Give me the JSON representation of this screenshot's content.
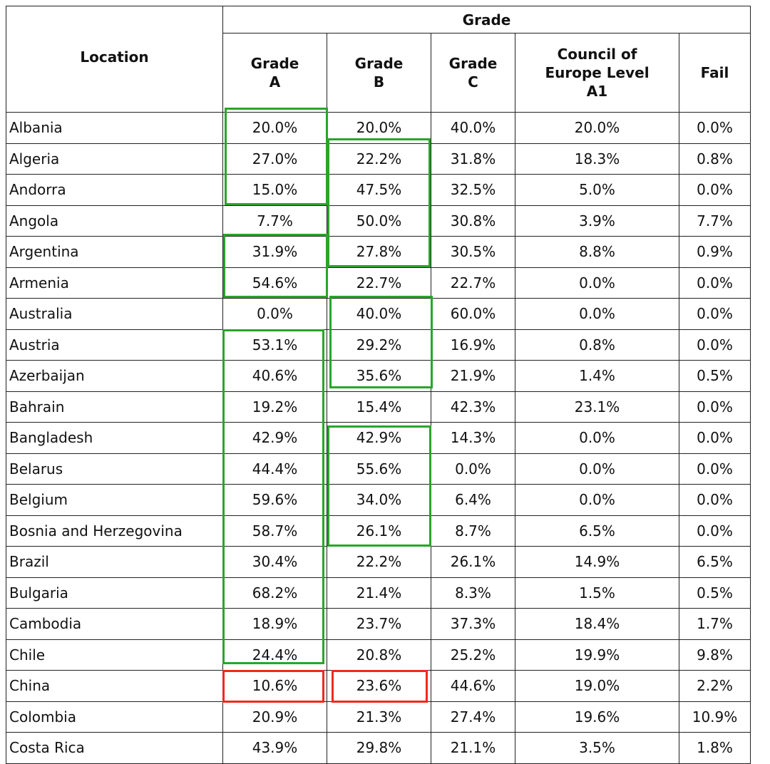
{
  "table": {
    "headers": {
      "location": "Location",
      "group": "Grade",
      "grade_a": [
        "Grade",
        "A"
      ],
      "grade_b": [
        "Grade",
        "B"
      ],
      "grade_c": [
        "Grade",
        "C"
      ],
      "council": [
        "Council of",
        "Europe Level",
        "A1"
      ],
      "fail": "Fail"
    },
    "rows": [
      {
        "location": "Albania",
        "values": [
          "20.0%",
          "20.0%",
          "40.0%",
          "20.0%",
          "0.0%"
        ]
      },
      {
        "location": "Algeria",
        "values": [
          "27.0%",
          "22.2%",
          "31.8%",
          "18.3%",
          "0.8%"
        ]
      },
      {
        "location": "Andorra",
        "values": [
          "15.0%",
          "47.5%",
          "32.5%",
          "5.0%",
          "0.0%"
        ]
      },
      {
        "location": "Angola",
        "values": [
          "7.7%",
          "50.0%",
          "30.8%",
          "3.9%",
          "7.7%"
        ]
      },
      {
        "location": "Argentina",
        "values": [
          "31.9%",
          "27.8%",
          "30.5%",
          "8.8%",
          "0.9%"
        ]
      },
      {
        "location": "Armenia",
        "values": [
          "54.6%",
          "22.7%",
          "22.7%",
          "0.0%",
          "0.0%"
        ]
      },
      {
        "location": "Australia",
        "values": [
          "0.0%",
          "40.0%",
          "60.0%",
          "0.0%",
          "0.0%"
        ]
      },
      {
        "location": "Austria",
        "values": [
          "53.1%",
          "29.2%",
          "16.9%",
          "0.8%",
          "0.0%"
        ]
      },
      {
        "location": "Azerbaijan",
        "values": [
          "40.6%",
          "35.6%",
          "21.9%",
          "1.4%",
          "0.5%"
        ]
      },
      {
        "location": "Bahrain",
        "values": [
          "19.2%",
          "15.4%",
          "42.3%",
          "23.1%",
          "0.0%"
        ]
      },
      {
        "location": "Bangladesh",
        "values": [
          "42.9%",
          "42.9%",
          "14.3%",
          "0.0%",
          "0.0%"
        ]
      },
      {
        "location": "Belarus",
        "values": [
          "44.4%",
          "55.6%",
          "0.0%",
          "0.0%",
          "0.0%"
        ]
      },
      {
        "location": "Belgium",
        "values": [
          "59.6%",
          "34.0%",
          "6.4%",
          "0.0%",
          "0.0%"
        ]
      },
      {
        "location": "Bosnia and Herzegovina",
        "values": [
          "58.7%",
          "26.1%",
          "8.7%",
          "6.5%",
          "0.0%"
        ]
      },
      {
        "location": "Brazil",
        "values": [
          "30.4%",
          "22.2%",
          "26.1%",
          "14.9%",
          "6.5%"
        ]
      },
      {
        "location": "Bulgaria",
        "values": [
          "68.2%",
          "21.4%",
          "8.3%",
          "1.5%",
          "0.5%"
        ]
      },
      {
        "location": "Cambodia",
        "values": [
          "18.9%",
          "23.7%",
          "37.3%",
          "18.4%",
          "1.7%"
        ]
      },
      {
        "location": "Chile",
        "values": [
          "24.4%",
          "20.8%",
          "25.2%",
          "19.9%",
          "9.8%"
        ]
      },
      {
        "location": "China",
        "values": [
          "10.6%",
          "23.6%",
          "44.6%",
          "19.0%",
          "2.2%"
        ]
      },
      {
        "location": "Colombia",
        "values": [
          "20.9%",
          "21.3%",
          "27.4%",
          "19.6%",
          "10.9%"
        ]
      },
      {
        "location": "Costa Rica",
        "values": [
          "43.9%",
          "29.8%",
          "21.1%",
          "3.5%",
          "1.8%"
        ]
      }
    ]
  },
  "highlight_colors": {
    "green": "#2aa52a",
    "red": "#ee2a1f"
  }
}
